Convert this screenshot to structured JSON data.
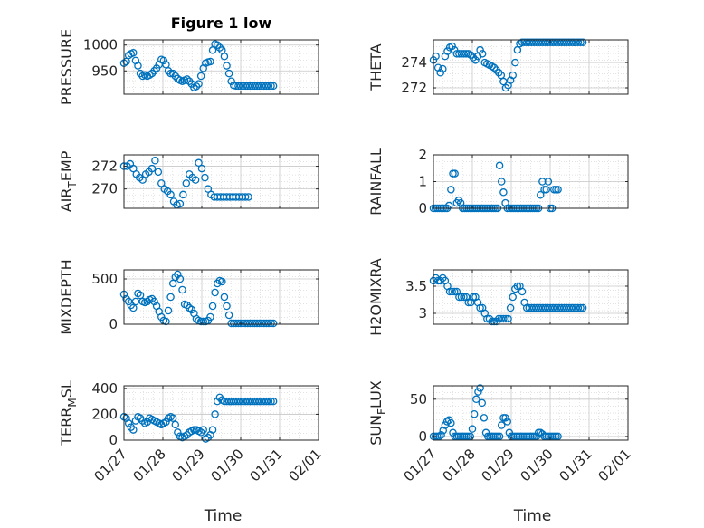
{
  "figure": {
    "title": "Figure 1 low",
    "xlabel": "Time",
    "x_ticks": [
      "01/27",
      "01/28",
      "01/29",
      "01/30",
      "01/31",
      "02/01"
    ],
    "x_range": [
      "01/27",
      "02/01"
    ],
    "marker_color": "#0072BD",
    "grid": true
  },
  "chart_data": [
    {
      "type": "scatter",
      "ylabel": "PRESSURE",
      "ylim": [
        905,
        1010
      ],
      "y_ticks": [
        950,
        1000
      ],
      "series": [
        {
          "x": [
            0.0,
            0.06,
            0.12,
            0.18,
            0.24,
            0.3,
            0.36,
            0.42,
            0.48,
            0.54,
            0.6,
            0.66,
            0.72,
            0.78,
            0.84,
            0.9,
            0.96,
            1.02,
            1.08,
            1.14,
            1.2,
            1.26,
            1.32,
            1.38,
            1.44,
            1.5,
            1.56,
            1.62,
            1.68,
            1.74,
            1.8,
            1.86,
            1.92,
            1.98,
            2.04,
            2.1,
            2.16,
            2.22,
            2.28,
            2.34,
            2.4,
            2.46,
            2.52,
            2.58,
            2.64,
            2.7,
            2.76,
            2.82,
            2.88,
            2.94,
            3.0,
            3.06,
            3.12,
            3.18,
            3.24,
            3.3,
            3.36,
            3.42,
            3.48,
            3.54,
            3.6,
            3.66,
            3.72,
            3.78,
            3.84
          ],
          "y": [
            965,
            968,
            980,
            983,
            985,
            970,
            960,
            945,
            940,
            942,
            940,
            942,
            945,
            950,
            955,
            962,
            972,
            970,
            962,
            950,
            945,
            945,
            940,
            935,
            932,
            930,
            932,
            934,
            930,
            925,
            918,
            920,
            925,
            940,
            955,
            965,
            967,
            968,
            990,
            1002,
            1000,
            995,
            990,
            978,
            960,
            945,
            930,
            922,
            921,
            921,
            921,
            921,
            921,
            921,
            921,
            921,
            921,
            921,
            921,
            921,
            921,
            921,
            921,
            921,
            921
          ]
        }
      ]
    },
    {
      "type": "scatter",
      "ylabel": "THETA",
      "ylim": [
        271.5,
        275.8
      ],
      "y_ticks": [
        272,
        274
      ],
      "series": [
        {
          "x": [
            0.0,
            0.06,
            0.12,
            0.18,
            0.24,
            0.3,
            0.36,
            0.42,
            0.48,
            0.54,
            0.6,
            0.66,
            0.72,
            0.78,
            0.84,
            0.9,
            0.96,
            1.02,
            1.08,
            1.14,
            1.2,
            1.26,
            1.32,
            1.38,
            1.44,
            1.5,
            1.56,
            1.62,
            1.68,
            1.74,
            1.8,
            1.86,
            1.92,
            1.98,
            2.04,
            2.1,
            2.16,
            2.22,
            2.28,
            2.34,
            2.4,
            2.46,
            2.52,
            2.58,
            2.64,
            2.7,
            2.76,
            2.82,
            2.88,
            2.94,
            3.0,
            3.06,
            3.12,
            3.18,
            3.24,
            3.3,
            3.36,
            3.42,
            3.48,
            3.54,
            3.6,
            3.66,
            3.72,
            3.78,
            3.84
          ],
          "y": [
            274.2,
            274.5,
            273.6,
            273.2,
            273.5,
            274.5,
            274.9,
            275.2,
            275.3,
            275.0,
            274.7,
            274.7,
            274.7,
            274.7,
            274.7,
            274.7,
            274.6,
            274.4,
            274.2,
            274.5,
            275.0,
            274.7,
            274.0,
            273.9,
            273.8,
            273.7,
            273.6,
            273.4,
            273.2,
            273.0,
            272.5,
            272.0,
            272.2,
            272.6,
            273.0,
            274.0,
            275.0,
            275.5,
            275.6,
            275.6,
            275.6,
            275.6,
            275.6,
            275.6,
            275.6,
            275.6,
            275.6,
            275.6,
            275.6,
            275.6,
            275.6,
            275.6,
            275.6,
            275.6,
            275.6,
            275.6,
            275.6,
            275.6,
            275.6,
            275.6,
            275.6,
            275.6,
            275.6,
            275.6,
            275.6
          ]
        }
      ]
    },
    {
      "type": "scatter",
      "ylabel_parts": [
        "AIR",
        "T",
        "EMP"
      ],
      "ylim": [
        268.3,
        273.0
      ],
      "y_ticks": [
        270,
        272
      ],
      "series": [
        {
          "x": [
            0.0,
            0.08,
            0.16,
            0.24,
            0.32,
            0.4,
            0.48,
            0.56,
            0.64,
            0.72,
            0.8,
            0.88,
            0.96,
            1.04,
            1.12,
            1.2,
            1.28,
            1.36,
            1.44,
            1.52,
            1.6,
            1.68,
            1.76,
            1.84,
            1.92,
            2.0,
            2.08,
            2.16,
            2.24,
            2.32,
            2.4,
            2.48,
            2.56,
            2.64,
            2.72,
            2.8,
            2.88,
            2.96,
            3.04,
            3.12,
            3.2
          ],
          "y": [
            272.0,
            272.0,
            272.2,
            271.8,
            271.3,
            271.0,
            270.8,
            271.3,
            271.5,
            271.8,
            272.5,
            271.5,
            270.5,
            270.0,
            269.8,
            269.5,
            268.9,
            268.6,
            268.7,
            269.5,
            270.5,
            271.3,
            271.0,
            270.8,
            272.3,
            271.8,
            271.0,
            270.0,
            269.5,
            269.3,
            269.3,
            269.3,
            269.3,
            269.3,
            269.3,
            269.3,
            269.3,
            269.3,
            269.3,
            269.3,
            269.3
          ]
        }
      ]
    },
    {
      "type": "scatter",
      "ylabel": "RAINFALL",
      "ylim": [
        0,
        2
      ],
      "y_ticks": [
        0,
        1,
        2
      ],
      "series": [
        {
          "x": [
            0.0,
            0.05,
            0.1,
            0.15,
            0.2,
            0.25,
            0.3,
            0.35,
            0.4,
            0.45,
            0.5,
            0.55,
            0.6,
            0.65,
            0.7,
            0.75,
            0.8,
            0.85,
            0.9,
            0.95,
            1.0,
            1.05,
            1.1,
            1.15,
            1.2,
            1.25,
            1.3,
            1.35,
            1.4,
            1.45,
            1.5,
            1.55,
            1.6,
            1.65,
            1.7,
            1.75,
            1.8,
            1.85,
            1.9,
            1.95,
            2.0,
            2.05,
            2.1,
            2.15,
            2.2,
            2.25,
            2.3,
            2.35,
            2.4,
            2.45,
            2.5,
            2.55,
            2.6,
            2.65,
            2.7,
            2.75,
            2.8,
            2.85,
            2.9,
            2.95,
            3.0,
            3.05,
            3.1,
            3.15,
            3.2
          ],
          "y": [
            0,
            0,
            0,
            0,
            0,
            0,
            0,
            0,
            0.1,
            0.7,
            1.3,
            1.3,
            0.2,
            0.3,
            0.2,
            0,
            0,
            0,
            0,
            0,
            0,
            0,
            0,
            0,
            0,
            0,
            0,
            0,
            0,
            0,
            0,
            0,
            0,
            0,
            1.6,
            1.0,
            0.6,
            0.2,
            0,
            0,
            0,
            0,
            0,
            0,
            0,
            0,
            0,
            0,
            0,
            0,
            0,
            0,
            0,
            0,
            0,
            0.5,
            1.0,
            0.7,
            0.7,
            1.0,
            0,
            0,
            0.7,
            0.7,
            0.7
          ]
        }
      ]
    },
    {
      "type": "scatter",
      "ylabel": "MIXDEPTH",
      "ylim": [
        0,
        600
      ],
      "y_ticks": [
        0,
        500
      ],
      "series": [
        {
          "x": [
            0.0,
            0.06,
            0.12,
            0.18,
            0.24,
            0.3,
            0.36,
            0.42,
            0.48,
            0.54,
            0.6,
            0.66,
            0.72,
            0.78,
            0.84,
            0.9,
            0.96,
            1.02,
            1.08,
            1.14,
            1.2,
            1.26,
            1.32,
            1.38,
            1.44,
            1.5,
            1.56,
            1.62,
            1.68,
            1.74,
            1.8,
            1.86,
            1.92,
            1.98,
            2.04,
            2.1,
            2.16,
            2.22,
            2.28,
            2.34,
            2.4,
            2.46,
            2.52,
            2.58,
            2.64,
            2.7,
            2.76,
            2.82,
            2.88,
            2.94,
            3.0,
            3.06,
            3.12,
            3.18,
            3.24,
            3.3,
            3.36,
            3.42,
            3.48,
            3.54,
            3.6,
            3.66,
            3.72,
            3.78,
            3.84
          ],
          "y": [
            330,
            280,
            250,
            210,
            180,
            250,
            340,
            320,
            250,
            240,
            250,
            270,
            280,
            250,
            200,
            140,
            80,
            40,
            30,
            150,
            300,
            450,
            520,
            550,
            500,
            380,
            220,
            210,
            180,
            160,
            120,
            60,
            40,
            30,
            30,
            30,
            40,
            80,
            200,
            350,
            450,
            480,
            470,
            300,
            200,
            100,
            10,
            10,
            10,
            10,
            10,
            10,
            10,
            10,
            10,
            10,
            10,
            10,
            10,
            10,
            10,
            10,
            10,
            10,
            10
          ]
        }
      ]
    },
    {
      "type": "scatter",
      "ylabel": "H2OMIXRA",
      "ylim": [
        2.8,
        3.8
      ],
      "y_ticks": [
        3,
        3.5
      ],
      "series": [
        {
          "x": [
            0.0,
            0.06,
            0.12,
            0.18,
            0.24,
            0.3,
            0.36,
            0.42,
            0.48,
            0.54,
            0.6,
            0.66,
            0.72,
            0.78,
            0.84,
            0.9,
            0.96,
            1.02,
            1.08,
            1.14,
            1.2,
            1.26,
            1.32,
            1.38,
            1.44,
            1.5,
            1.56,
            1.62,
            1.68,
            1.74,
            1.8,
            1.86,
            1.92,
            1.98,
            2.04,
            2.1,
            2.16,
            2.22,
            2.28,
            2.34,
            2.4,
            2.46,
            2.52,
            2.58,
            2.64,
            2.7,
            2.76,
            2.82,
            2.88,
            2.94,
            3.0,
            3.06,
            3.12,
            3.18,
            3.24,
            3.3,
            3.36,
            3.42,
            3.48,
            3.54,
            3.6,
            3.66,
            3.72,
            3.78,
            3.84
          ],
          "y": [
            3.6,
            3.65,
            3.6,
            3.6,
            3.65,
            3.6,
            3.5,
            3.4,
            3.4,
            3.4,
            3.4,
            3.3,
            3.3,
            3.3,
            3.3,
            3.2,
            3.2,
            3.3,
            3.3,
            3.2,
            3.1,
            3.1,
            3.0,
            2.9,
            2.9,
            2.85,
            2.85,
            2.85,
            2.9,
            2.9,
            2.9,
            2.9,
            2.9,
            3.1,
            3.3,
            3.45,
            3.5,
            3.5,
            3.4,
            3.2,
            3.1,
            3.1,
            3.1,
            3.1,
            3.1,
            3.1,
            3.1,
            3.1,
            3.1,
            3.1,
            3.1,
            3.1,
            3.1,
            3.1,
            3.1,
            3.1,
            3.1,
            3.1,
            3.1,
            3.1,
            3.1,
            3.1,
            3.1,
            3.1,
            3.1
          ]
        }
      ]
    },
    {
      "type": "scatter",
      "ylabel_parts": [
        "TERR",
        "M",
        "SL"
      ],
      "ylim": [
        0,
        420
      ],
      "y_ticks": [
        0,
        200,
        400
      ],
      "series": [
        {
          "x": [
            0.0,
            0.06,
            0.12,
            0.18,
            0.24,
            0.3,
            0.36,
            0.42,
            0.48,
            0.54,
            0.6,
            0.66,
            0.72,
            0.78,
            0.84,
            0.9,
            0.96,
            1.02,
            1.08,
            1.14,
            1.2,
            1.26,
            1.32,
            1.38,
            1.44,
            1.5,
            1.56,
            1.62,
            1.68,
            1.74,
            1.8,
            1.86,
            1.92,
            1.98,
            2.04,
            2.1,
            2.16,
            2.22,
            2.28,
            2.34,
            2.4,
            2.46,
            2.52,
            2.58,
            2.64,
            2.7,
            2.76,
            2.82,
            2.88,
            2.94,
            3.0,
            3.06,
            3.12,
            3.18,
            3.24,
            3.3,
            3.36,
            3.42,
            3.48,
            3.54,
            3.6,
            3.66,
            3.72,
            3.78,
            3.84
          ],
          "y": [
            180,
            170,
            130,
            100,
            80,
            150,
            180,
            170,
            150,
            130,
            140,
            170,
            160,
            150,
            140,
            130,
            120,
            130,
            140,
            170,
            180,
            170,
            120,
            60,
            30,
            20,
            30,
            40,
            60,
            70,
            80,
            80,
            70,
            60,
            80,
            10,
            20,
            40,
            80,
            200,
            300,
            330,
            310,
            300,
            300,
            300,
            300,
            300,
            300,
            300,
            300,
            300,
            300,
            300,
            300,
            300,
            300,
            300,
            300,
            300,
            300,
            300,
            300,
            300,
            300
          ]
        }
      ]
    },
    {
      "type": "scatter",
      "ylabel_parts": [
        "SUN",
        "F",
        "LUX"
      ],
      "ylim": [
        -5,
        68
      ],
      "y_ticks": [
        0,
        50
      ],
      "series": [
        {
          "x": [
            0.0,
            0.05,
            0.1,
            0.15,
            0.2,
            0.25,
            0.3,
            0.35,
            0.4,
            0.45,
            0.5,
            0.55,
            0.6,
            0.65,
            0.7,
            0.75,
            0.8,
            0.85,
            0.9,
            0.95,
            1.0,
            1.05,
            1.1,
            1.15,
            1.2,
            1.25,
            1.3,
            1.35,
            1.4,
            1.45,
            1.5,
            1.55,
            1.6,
            1.65,
            1.7,
            1.75,
            1.8,
            1.85,
            1.9,
            1.95,
            2.0,
            2.05,
            2.1,
            2.15,
            2.2,
            2.25,
            2.3,
            2.35,
            2.4,
            2.45,
            2.5,
            2.55,
            2.6,
            2.65,
            2.7,
            2.75,
            2.8,
            2.85,
            2.9,
            2.95,
            3.0,
            3.05,
            3.1,
            3.15,
            3.2
          ],
          "y": [
            0,
            0,
            0,
            0,
            2,
            8,
            15,
            20,
            22,
            18,
            5,
            0,
            0,
            0,
            0,
            0,
            0,
            0,
            0,
            0,
            10,
            30,
            50,
            60,
            65,
            45,
            25,
            5,
            0,
            0,
            0,
            0,
            0,
            0,
            0,
            15,
            25,
            25,
            20,
            5,
            0,
            0,
            0,
            0,
            0,
            0,
            0,
            0,
            0,
            0,
            0,
            0,
            0,
            0,
            5,
            5,
            3,
            0,
            0,
            0,
            0,
            0,
            0,
            0,
            0
          ]
        }
      ]
    }
  ]
}
